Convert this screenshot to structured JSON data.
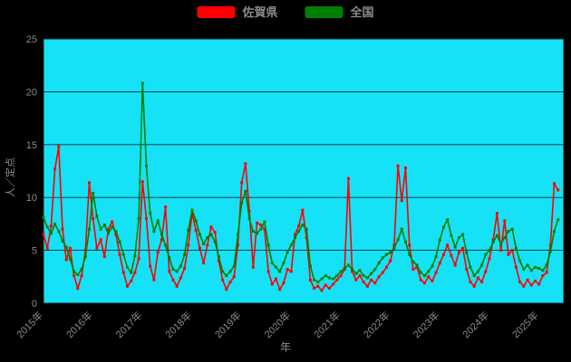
{
  "legend": {
    "items": [
      {
        "id": "saga",
        "label": "佐賀県",
        "color": "#ff0000"
      },
      {
        "id": "national",
        "label": "全国",
        "color": "#008000"
      }
    ]
  },
  "axis": {
    "xlabel": "年",
    "ylabel": "人／定点"
  },
  "chart_data": {
    "type": "line",
    "title": "",
    "xlabel": "年",
    "ylabel": "人／定点",
    "xlim": [
      2015,
      2025.5
    ],
    "ylim": [
      0,
      25
    ],
    "yticks": [
      0,
      5,
      10,
      15,
      20,
      25
    ],
    "xtick_years": [
      2015,
      2016,
      2017,
      2018,
      2019,
      2020,
      2021,
      2022,
      2023,
      2024,
      2025
    ],
    "xtick_labels": [
      "2015年",
      "2016年",
      "2017年",
      "2018年",
      "2019年",
      "2020年",
      "2021年",
      "2022年",
      "2023年",
      "2024年",
      "2025年"
    ],
    "grid": "horizontal",
    "legend_position": "top-center",
    "plot_bg": "#15e2f6",
    "fig_bg": "#000000",
    "text_color": "#8a8a8a",
    "grid_color": "#17262a",
    "x_start": 2015.0,
    "x_step": 0.076923,
    "series": [
      {
        "id": "saga",
        "name": "佐賀県",
        "color": "#ff0000",
        "values": [
          6.5,
          5.2,
          7.3,
          12.7,
          14.8,
          7.0,
          4.1,
          5.2,
          2.6,
          1.4,
          2.6,
          5.0,
          11.4,
          8.0,
          5.2,
          6.0,
          4.4,
          7.0,
          7.7,
          6.5,
          4.6,
          2.9,
          1.6,
          2.1,
          2.9,
          4.2,
          11.5,
          8.0,
          3.5,
          2.2,
          4.8,
          6.0,
          9.1,
          3.0,
          2.2,
          1.6,
          2.4,
          3.3,
          5.5,
          8.5,
          6.9,
          5.2,
          3.8,
          5.5,
          7.2,
          6.7,
          4.0,
          2.2,
          1.3,
          2.0,
          2.5,
          5.5,
          11.4,
          13.2,
          8.7,
          3.4,
          7.6,
          7.4,
          7.0,
          3.0,
          1.8,
          2.3,
          1.3,
          1.9,
          3.2,
          3.0,
          6.5,
          7.3,
          8.8,
          6.2,
          2.2,
          1.4,
          1.6,
          1.2,
          1.7,
          1.4,
          1.8,
          2.2,
          2.6,
          3.2,
          11.8,
          3.0,
          2.2,
          2.6,
          2.0,
          1.6,
          2.2,
          1.9,
          2.5,
          2.9,
          3.4,
          4.0,
          5.5,
          13.0,
          9.7,
          12.8,
          5.5,
          3.2,
          3.4,
          2.2,
          1.9,
          2.5,
          2.1,
          2.9,
          3.8,
          4.6,
          5.5,
          4.5,
          3.6,
          4.8,
          5.2,
          3.2,
          2.0,
          1.6,
          2.4,
          2.0,
          3.0,
          4.2,
          6.0,
          8.5,
          5.0,
          7.8,
          4.6,
          5.0,
          3.4,
          2.0,
          1.6,
          2.2,
          1.7,
          2.1,
          1.8,
          2.6,
          2.9,
          5.5,
          11.3,
          10.7
        ]
      },
      {
        "id": "national",
        "name": "全国",
        "color": "#008000",
        "values": [
          8.1,
          7.2,
          6.6,
          7.5,
          6.8,
          5.9,
          5.3,
          4.2,
          3.0,
          2.7,
          3.2,
          4.4,
          7.0,
          10.4,
          8.2,
          7.0,
          7.4,
          6.6,
          7.2,
          6.8,
          5.8,
          4.6,
          3.4,
          2.9,
          4.5,
          8.0,
          20.8,
          13.0,
          8.5,
          6.8,
          7.8,
          6.5,
          5.5,
          4.3,
          3.2,
          3.0,
          3.5,
          4.6,
          6.9,
          8.8,
          7.8,
          6.5,
          5.6,
          6.2,
          6.5,
          5.8,
          4.4,
          3.0,
          2.6,
          3.0,
          3.5,
          6.5,
          9.5,
          10.6,
          8.0,
          6.8,
          6.6,
          7.0,
          7.7,
          5.5,
          3.8,
          3.4,
          3.0,
          3.8,
          4.8,
          5.5,
          6.2,
          6.8,
          7.4,
          7.0,
          3.5,
          2.2,
          2.0,
          2.3,
          2.6,
          2.4,
          2.3,
          2.6,
          3.0,
          3.3,
          3.6,
          3.2,
          2.8,
          3.1,
          2.6,
          2.4,
          2.8,
          3.2,
          3.8,
          4.3,
          4.6,
          4.8,
          5.2,
          6.0,
          7.0,
          5.8,
          4.6,
          3.9,
          3.6,
          2.9,
          2.6,
          3.0,
          3.5,
          4.4,
          6.0,
          7.2,
          7.9,
          6.4,
          5.3,
          6.2,
          6.5,
          4.8,
          3.4,
          2.6,
          3.0,
          3.6,
          4.6,
          5.0,
          5.8,
          6.4,
          5.6,
          6.2,
          6.8,
          7.0,
          5.2,
          4.0,
          3.2,
          3.6,
          3.1,
          3.4,
          3.3,
          3.1,
          3.6,
          4.9,
          6.8,
          7.9
        ]
      }
    ]
  }
}
